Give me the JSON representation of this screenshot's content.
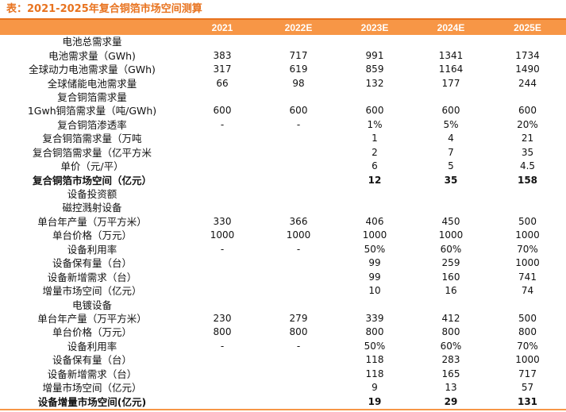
{
  "title": "表：2021-2025年复合铜箔市场空间测算",
  "columns": [
    "",
    "2021",
    "2022E",
    "2023E",
    "2024E",
    "2025E"
  ],
  "rows": [
    {
      "label": "电池总需求量",
      "values": [
        "",
        "",
        "",
        "",
        ""
      ],
      "bold": false
    },
    {
      "label": "电池需求量（GWh)",
      "values": [
        "383",
        "717",
        "991",
        "1341",
        "1734"
      ],
      "bold": false
    },
    {
      "label": "全球动力电池需求量（GWh)",
      "values": [
        "317",
        "619",
        "859",
        "1164",
        "1490"
      ],
      "bold": false
    },
    {
      "label": "全球储能电池需求量",
      "values": [
        "66",
        "98",
        "132",
        "177",
        "244"
      ],
      "bold": false
    },
    {
      "label": "复合铜箔需求量",
      "values": [
        "",
        "",
        "",
        "",
        ""
      ],
      "bold": false
    },
    {
      "label": "1Gwh铜箔需求量（吨/GWh)",
      "values": [
        "600",
        "600",
        "600",
        "600",
        "600"
      ],
      "bold": false
    },
    {
      "label": "复合铜箔渗透率",
      "values": [
        "-",
        "-",
        "1%",
        "5%",
        "20%"
      ],
      "bold": false
    },
    {
      "label": "复合铜箔需求量（万吨",
      "values": [
        "",
        "",
        "1",
        "4",
        "21"
      ],
      "bold": false
    },
    {
      "label": "复合铜箔需求量（亿平方米",
      "values": [
        "",
        "",
        "2",
        "7",
        "35"
      ],
      "bold": false
    },
    {
      "label": "单价（元/平）",
      "values": [
        "",
        "",
        "6",
        "5",
        "4.5"
      ],
      "bold": false
    },
    {
      "label": "复合铜箔市场空间（亿元）",
      "values": [
        "",
        "",
        "12",
        "35",
        "158"
      ],
      "bold": true
    },
    {
      "label": "设备投资额",
      "values": [
        "",
        "",
        "",
        "",
        ""
      ],
      "bold": false
    },
    {
      "label": "磁控溅射设备",
      "values": [
        "",
        "",
        "",
        "",
        ""
      ],
      "bold": false
    },
    {
      "label": "单台年产量（万平方米）",
      "values": [
        "330",
        "366",
        "406",
        "450",
        "500"
      ],
      "bold": false
    },
    {
      "label": "单台价格（万元）",
      "values": [
        "1000",
        "1000",
        "1000",
        "1000",
        "1000"
      ],
      "bold": false
    },
    {
      "label": "设备利用率",
      "values": [
        "-",
        "-",
        "50%",
        "60%",
        "70%"
      ],
      "bold": false
    },
    {
      "label": "设备保有量（台）",
      "values": [
        "",
        "",
        "99",
        "259",
        "1000"
      ],
      "bold": false
    },
    {
      "label": "设备新增需求（台）",
      "values": [
        "",
        "",
        "99",
        "160",
        "741"
      ],
      "bold": false
    },
    {
      "label": "增量市场空间（亿元）",
      "values": [
        "",
        "",
        "10",
        "16",
        "74"
      ],
      "bold": false
    },
    {
      "label": "电镀设备",
      "values": [
        "",
        "",
        "",
        "",
        ""
      ],
      "bold": false
    },
    {
      "label": "单台年产量（万平方米）",
      "values": [
        "230",
        "279",
        "339",
        "412",
        "500"
      ],
      "bold": false
    },
    {
      "label": "单台价格（万元）",
      "values": [
        "800",
        "800",
        "800",
        "800",
        "800"
      ],
      "bold": false
    },
    {
      "label": "设备利用率",
      "values": [
        "-",
        "-",
        "50%",
        "60%",
        "70%"
      ],
      "bold": false
    },
    {
      "label": "设备保有量（台）",
      "values": [
        "",
        "",
        "118",
        "283",
        "1000"
      ],
      "bold": false
    },
    {
      "label": "设备新增需求（台）",
      "values": [
        "",
        "",
        "118",
        "165",
        "717"
      ],
      "bold": false
    },
    {
      "label": "增量市场空间（亿元）",
      "values": [
        "",
        "",
        "9",
        "13",
        "57"
      ],
      "bold": false
    },
    {
      "label": "设备增量市场空间(亿元)",
      "values": [
        "",
        "",
        "19",
        "29",
        "131"
      ],
      "bold": true
    }
  ]
}
